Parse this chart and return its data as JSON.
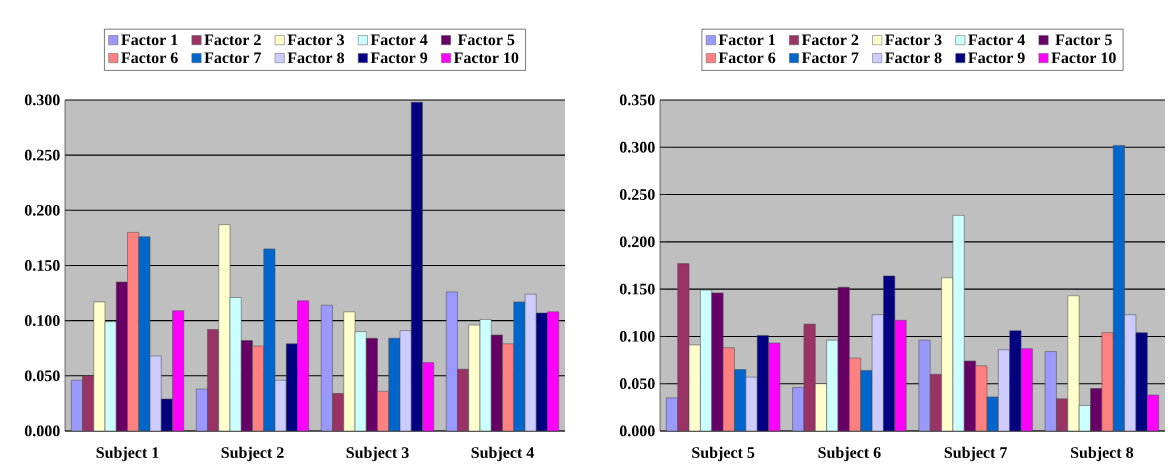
{
  "chart_data": [
    {
      "type": "bar",
      "categories": [
        "Subject 1",
        "Subject 2",
        "Subject 3",
        "Subject 4"
      ],
      "ylim": [
        0,
        0.3
      ],
      "yticks": [
        {
          "value": 0,
          "label": "0.000"
        },
        {
          "value": 0.05,
          "label": "0.050"
        },
        {
          "value": 0.1,
          "label": "0.100"
        },
        {
          "value": 0.15,
          "label": "0.150"
        },
        {
          "value": 0.2,
          "label": "0.200"
        },
        {
          "value": 0.25,
          "label": "0.250"
        },
        {
          "value": 0.3,
          "label": "0.300"
        }
      ],
      "grid": "y",
      "legend": "top",
      "series": [
        {
          "name": "Factor 1",
          "color": "#9999ff",
          "values": [
            0.046,
            0.038,
            0.114,
            0.126
          ]
        },
        {
          "name": "Factor 2",
          "color": "#993366",
          "values": [
            0.05,
            0.092,
            0.034,
            0.056
          ]
        },
        {
          "name": "Factor 3",
          "color": "#ffffcc",
          "values": [
            0.117,
            0.187,
            0.108,
            0.096
          ]
        },
        {
          "name": "Factor 4",
          "color": "#ccffff",
          "values": [
            0.099,
            0.121,
            0.09,
            0.101
          ]
        },
        {
          "name": "Factor 5",
          "color": "#660066",
          "values": [
            0.135,
            0.082,
            0.084,
            0.087
          ]
        },
        {
          "name": "Factor 6",
          "color": "#ff8080",
          "values": [
            0.18,
            0.077,
            0.036,
            0.079
          ]
        },
        {
          "name": "Factor 7",
          "color": "#0066cc",
          "values": [
            0.176,
            0.165,
            0.084,
            0.117
          ]
        },
        {
          "name": "Factor 8",
          "color": "#ccccff",
          "values": [
            0.068,
            0.046,
            0.091,
            0.124
          ]
        },
        {
          "name": "Factor 9",
          "color": "#000080",
          "values": [
            0.029,
            0.079,
            0.298,
            0.107
          ]
        },
        {
          "name": "Factor 10",
          "color": "#ff00ff",
          "values": [
            0.109,
            0.118,
            0.062,
            0.108
          ]
        }
      ]
    },
    {
      "type": "bar",
      "categories": [
        "Subject 5",
        "Subject 6",
        "Subject 7",
        "Subject 8"
      ],
      "ylim": [
        0,
        0.35
      ],
      "yticks": [
        {
          "value": 0,
          "label": "0.000"
        },
        {
          "value": 0.05,
          "label": "0.050"
        },
        {
          "value": 0.1,
          "label": "0.100"
        },
        {
          "value": 0.15,
          "label": "0.150"
        },
        {
          "value": 0.2,
          "label": "0.200"
        },
        {
          "value": 0.25,
          "label": "0.250"
        },
        {
          "value": 0.3,
          "label": "0.300"
        },
        {
          "value": 0.35,
          "label": "0.350"
        }
      ],
      "grid": "y",
      "legend": "top",
      "series": [
        {
          "name": "Factor 1",
          "color": "#9999ff",
          "values": [
            0.035,
            0.046,
            0.096,
            0.084
          ]
        },
        {
          "name": "Factor 2",
          "color": "#993366",
          "values": [
            0.177,
            0.113,
            0.06,
            0.034
          ]
        },
        {
          "name": "Factor 3",
          "color": "#ffffcc",
          "values": [
            0.091,
            0.05,
            0.162,
            0.143
          ]
        },
        {
          "name": "Factor 4",
          "color": "#ccffff",
          "values": [
            0.149,
            0.096,
            0.228,
            0.027
          ]
        },
        {
          "name": "Factor 5",
          "color": "#660066",
          "values": [
            0.146,
            0.152,
            0.074,
            0.045
          ]
        },
        {
          "name": "Factor 6",
          "color": "#ff8080",
          "values": [
            0.088,
            0.077,
            0.069,
            0.104
          ]
        },
        {
          "name": "Factor 7",
          "color": "#0066cc",
          "values": [
            0.065,
            0.064,
            0.036,
            0.302
          ]
        },
        {
          "name": "Factor 8",
          "color": "#ccccff",
          "values": [
            0.057,
            0.123,
            0.086,
            0.123
          ]
        },
        {
          "name": "Factor 9",
          "color": "#000080",
          "values": [
            0.101,
            0.164,
            0.106,
            0.104
          ]
        },
        {
          "name": "Factor 10",
          "color": "#ff00ff",
          "values": [
            0.093,
            0.117,
            0.087,
            0.038
          ]
        }
      ]
    }
  ]
}
